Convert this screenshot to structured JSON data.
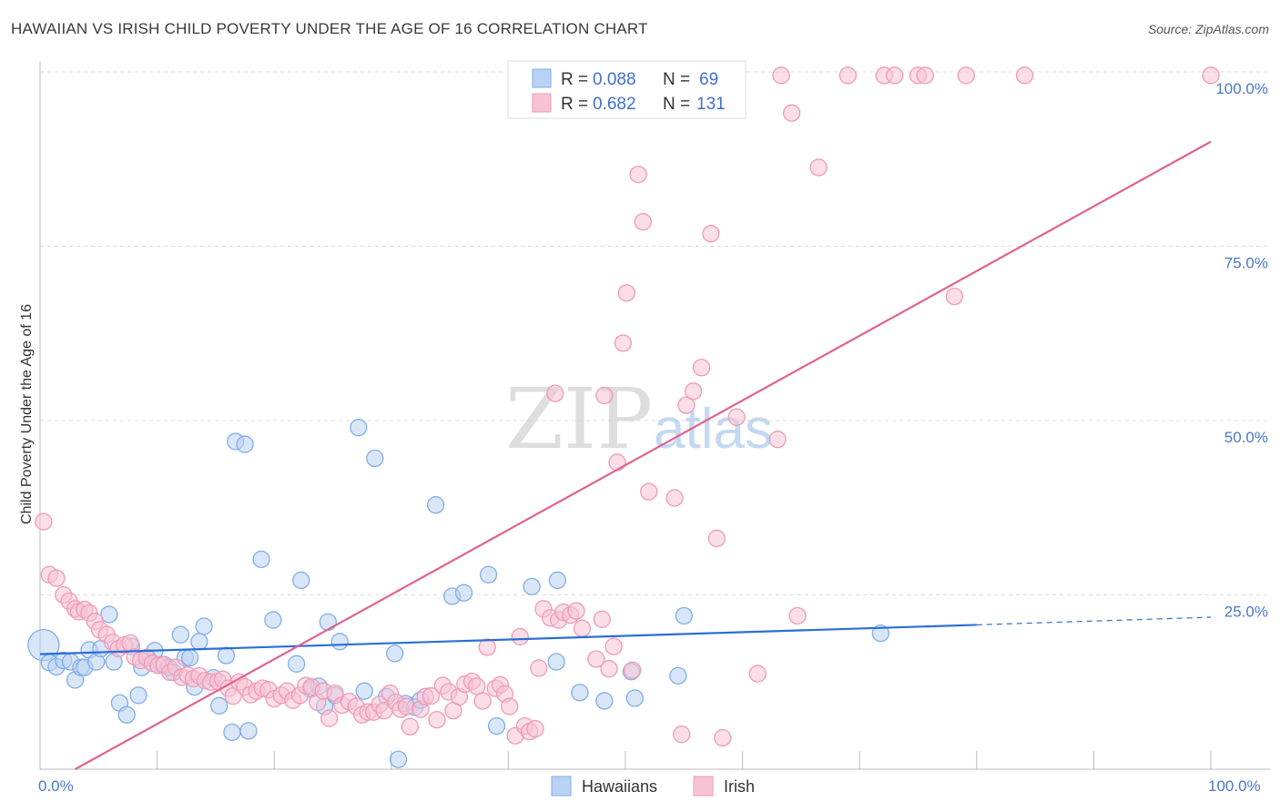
{
  "title": "HAWAIIAN VS IRISH CHILD POVERTY UNDER THE AGE OF 16 CORRELATION CHART",
  "source": "Source: ZipAtlas.com",
  "watermark": {
    "zip": "ZIP",
    "atlas": "atlas"
  },
  "legend": {
    "r_label": "R =",
    "n_label": "N =",
    "series": [
      {
        "name": "Hawaiians",
        "r": "0.088",
        "n": "69",
        "color": "#7faee8",
        "fill": "#b9d2f3"
      },
      {
        "name": "Irish",
        "r": "0.682",
        "n": "131",
        "color": "#ef9ab6",
        "fill": "#f7c3d4"
      }
    ]
  },
  "chart_data": {
    "type": "scatter",
    "title": "HAWAIIAN VS IRISH CHILD POVERTY UNDER THE AGE OF 16 CORRELATION CHART",
    "xlabel": "",
    "ylabel": "Child Poverty Under the Age of 16",
    "xlim": [
      0,
      100
    ],
    "ylim": [
      0,
      102
    ],
    "x_tick_labels": [
      "0.0%",
      "100.0%"
    ],
    "y_ticks": [
      25,
      50,
      75,
      100
    ],
    "y_tick_labels": [
      "25.0%",
      "50.0%",
      "75.0%",
      "100.0%"
    ],
    "grid": true,
    "series": [
      {
        "name": "Hawaiians",
        "color": "#7faee8",
        "fill": "#b9d2f3",
        "trend": {
          "x0": 0,
          "y0": 16.5,
          "x1": 80,
          "y1": 20.7,
          "dash_to": 100,
          "dash_y": 21.8,
          "color": "#2a6fd0"
        },
        "points": [
          [
            0.3,
            17.8
          ],
          [
            0.8,
            15.3
          ],
          [
            1.4,
            14.7
          ],
          [
            2.0,
            15.6
          ],
          [
            2.6,
            15.4
          ],
          [
            3.0,
            12.8
          ],
          [
            3.5,
            14.6
          ],
          [
            3.8,
            14.6
          ],
          [
            4.2,
            17.1
          ],
          [
            4.8,
            15.4
          ],
          [
            5.2,
            17.3
          ],
          [
            5.9,
            22.2
          ],
          [
            6.3,
            15.4
          ],
          [
            6.8,
            9.5
          ],
          [
            7.4,
            7.8
          ],
          [
            7.8,
            17.6
          ],
          [
            8.4,
            10.6
          ],
          [
            8.7,
            14.6
          ],
          [
            9.2,
            16.0
          ],
          [
            9.8,
            17.0
          ],
          [
            10.4,
            15.0
          ],
          [
            11.0,
            14.6
          ],
          [
            11.4,
            13.9
          ],
          [
            12.0,
            19.3
          ],
          [
            12.4,
            16.0
          ],
          [
            12.8,
            16.0
          ],
          [
            13.2,
            11.8
          ],
          [
            13.6,
            18.3
          ],
          [
            14.0,
            20.5
          ],
          [
            14.8,
            13.1
          ],
          [
            15.3,
            9.1
          ],
          [
            15.9,
            16.3
          ],
          [
            16.4,
            5.3
          ],
          [
            16.7,
            47.0
          ],
          [
            17.5,
            46.6
          ],
          [
            17.8,
            5.5
          ],
          [
            18.9,
            30.1
          ],
          [
            19.9,
            21.4
          ],
          [
            21.9,
            15.1
          ],
          [
            22.3,
            27.1
          ],
          [
            23.1,
            11.5
          ],
          [
            23.8,
            11.9
          ],
          [
            24.3,
            9.0
          ],
          [
            24.6,
            21.1
          ],
          [
            25.2,
            10.6
          ],
          [
            25.6,
            18.3
          ],
          [
            27.2,
            49.0
          ],
          [
            27.7,
            11.2
          ],
          [
            28.6,
            44.6
          ],
          [
            29.6,
            10.4
          ],
          [
            30.3,
            16.6
          ],
          [
            30.6,
            1.4
          ],
          [
            31.2,
            9.4
          ],
          [
            32.0,
            8.9
          ],
          [
            32.5,
            9.9
          ],
          [
            33.8,
            37.9
          ],
          [
            35.2,
            24.8
          ],
          [
            36.2,
            25.3
          ],
          [
            38.3,
            27.9
          ],
          [
            39.0,
            6.2
          ],
          [
            42.0,
            26.2
          ],
          [
            44.1,
            15.4
          ],
          [
            44.2,
            27.1
          ],
          [
            46.1,
            11.0
          ],
          [
            48.2,
            9.8
          ],
          [
            50.5,
            14.0
          ],
          [
            50.8,
            10.2
          ],
          [
            54.5,
            13.4
          ],
          [
            55.0,
            22.0
          ],
          [
            71.8,
            19.5
          ]
        ]
      },
      {
        "name": "Irish",
        "color": "#ef9ab6",
        "fill": "#f7c3d4",
        "trend": {
          "x0": 3,
          "y0": 0,
          "x1": 100,
          "y1": 90,
          "color": "#e0628e"
        },
        "points": [
          [
            0.3,
            35.5
          ],
          [
            0.8,
            27.9
          ],
          [
            1.4,
            27.4
          ],
          [
            2.0,
            25.0
          ],
          [
            2.5,
            24.1
          ],
          [
            3.0,
            23.0
          ],
          [
            3.3,
            22.6
          ],
          [
            3.8,
            22.9
          ],
          [
            4.2,
            22.4
          ],
          [
            4.7,
            21.2
          ],
          [
            5.1,
            20.0
          ],
          [
            5.7,
            19.3
          ],
          [
            6.2,
            18.2
          ],
          [
            6.7,
            17.3
          ],
          [
            7.2,
            17.8
          ],
          [
            7.7,
            18.1
          ],
          [
            8.1,
            16.1
          ],
          [
            8.6,
            15.6
          ],
          [
            9.1,
            16.0
          ],
          [
            9.6,
            15.2
          ],
          [
            10.1,
            14.9
          ],
          [
            10.6,
            15.0
          ],
          [
            11.1,
            13.9
          ],
          [
            11.6,
            14.6
          ],
          [
            12.1,
            13.2
          ],
          [
            12.6,
            13.5
          ],
          [
            13.1,
            13.0
          ],
          [
            13.6,
            13.4
          ],
          [
            14.1,
            12.7
          ],
          [
            14.6,
            12.5
          ],
          [
            15.2,
            12.6
          ],
          [
            15.6,
            12.9
          ],
          [
            16.1,
            11.6
          ],
          [
            16.5,
            10.5
          ],
          [
            17.0,
            12.5
          ],
          [
            17.5,
            11.8
          ],
          [
            18.0,
            10.7
          ],
          [
            18.5,
            11.2
          ],
          [
            19.0,
            11.6
          ],
          [
            19.5,
            11.4
          ],
          [
            20.0,
            10.1
          ],
          [
            20.6,
            10.6
          ],
          [
            21.1,
            11.2
          ],
          [
            21.6,
            9.9
          ],
          [
            22.2,
            10.6
          ],
          [
            22.7,
            12.0
          ],
          [
            23.2,
            11.8
          ],
          [
            23.7,
            9.6
          ],
          [
            24.2,
            11.2
          ],
          [
            24.7,
            7.3
          ],
          [
            25.2,
            10.9
          ],
          [
            25.8,
            9.2
          ],
          [
            26.4,
            9.7
          ],
          [
            27.0,
            9.0
          ],
          [
            27.5,
            7.8
          ],
          [
            28.0,
            8.2
          ],
          [
            28.5,
            8.2
          ],
          [
            29.0,
            9.3
          ],
          [
            29.4,
            8.4
          ],
          [
            29.9,
            10.9
          ],
          [
            30.4,
            9.6
          ],
          [
            30.8,
            8.6
          ],
          [
            31.3,
            9.0
          ],
          [
            31.6,
            6.1
          ],
          [
            32.5,
            8.6
          ],
          [
            32.9,
            10.4
          ],
          [
            33.4,
            10.5
          ],
          [
            33.9,
            7.1
          ],
          [
            34.4,
            12.0
          ],
          [
            34.9,
            11.1
          ],
          [
            35.3,
            8.4
          ],
          [
            35.8,
            10.4
          ],
          [
            36.3,
            12.2
          ],
          [
            36.9,
            12.6
          ],
          [
            37.3,
            11.9
          ],
          [
            37.8,
            9.8
          ],
          [
            38.2,
            17.5
          ],
          [
            38.9,
            11.6
          ],
          [
            39.3,
            12.1
          ],
          [
            39.7,
            10.8
          ],
          [
            40.1,
            9.0
          ],
          [
            40.6,
            4.8
          ],
          [
            41.0,
            19.0
          ],
          [
            41.4,
            6.2
          ],
          [
            41.8,
            5.4
          ],
          [
            42.3,
            5.8
          ],
          [
            42.6,
            14.5
          ],
          [
            43.0,
            23.0
          ],
          [
            43.6,
            21.7
          ],
          [
            44.0,
            53.9
          ],
          [
            44.3,
            21.4
          ],
          [
            44.7,
            22.5
          ],
          [
            45.3,
            22.1
          ],
          [
            45.8,
            22.7
          ],
          [
            46.3,
            20.2
          ],
          [
            47.5,
            15.8
          ],
          [
            48.0,
            21.5
          ],
          [
            48.2,
            53.6
          ],
          [
            48.6,
            14.4
          ],
          [
            49.0,
            17.6
          ],
          [
            49.3,
            44.0
          ],
          [
            49.8,
            61.1
          ],
          [
            50.6,
            14.2
          ],
          [
            51.1,
            85.3
          ],
          [
            51.5,
            78.5
          ],
          [
            52.0,
            39.8
          ],
          [
            54.2,
            38.9
          ],
          [
            54.8,
            5.0
          ],
          [
            55.2,
            52.2
          ],
          [
            55.8,
            54.2
          ],
          [
            56.5,
            57.6
          ],
          [
            57.3,
            76.8
          ],
          [
            57.8,
            33.1
          ],
          [
            58.3,
            4.5
          ],
          [
            59.5,
            50.5
          ],
          [
            61.3,
            13.7
          ],
          [
            63.0,
            47.3
          ],
          [
            63.3,
            99.5
          ],
          [
            64.2,
            94.1
          ],
          [
            64.7,
            22.0
          ],
          [
            66.5,
            86.3
          ],
          [
            69.0,
            99.5
          ],
          [
            72.1,
            99.5
          ],
          [
            73.0,
            99.5
          ],
          [
            75.0,
            99.5
          ],
          [
            75.6,
            99.5
          ],
          [
            78.1,
            67.8
          ],
          [
            79.1,
            99.5
          ],
          [
            84.1,
            99.5
          ],
          [
            100.0,
            99.5
          ],
          [
            50.1,
            68.3
          ]
        ]
      }
    ]
  }
}
